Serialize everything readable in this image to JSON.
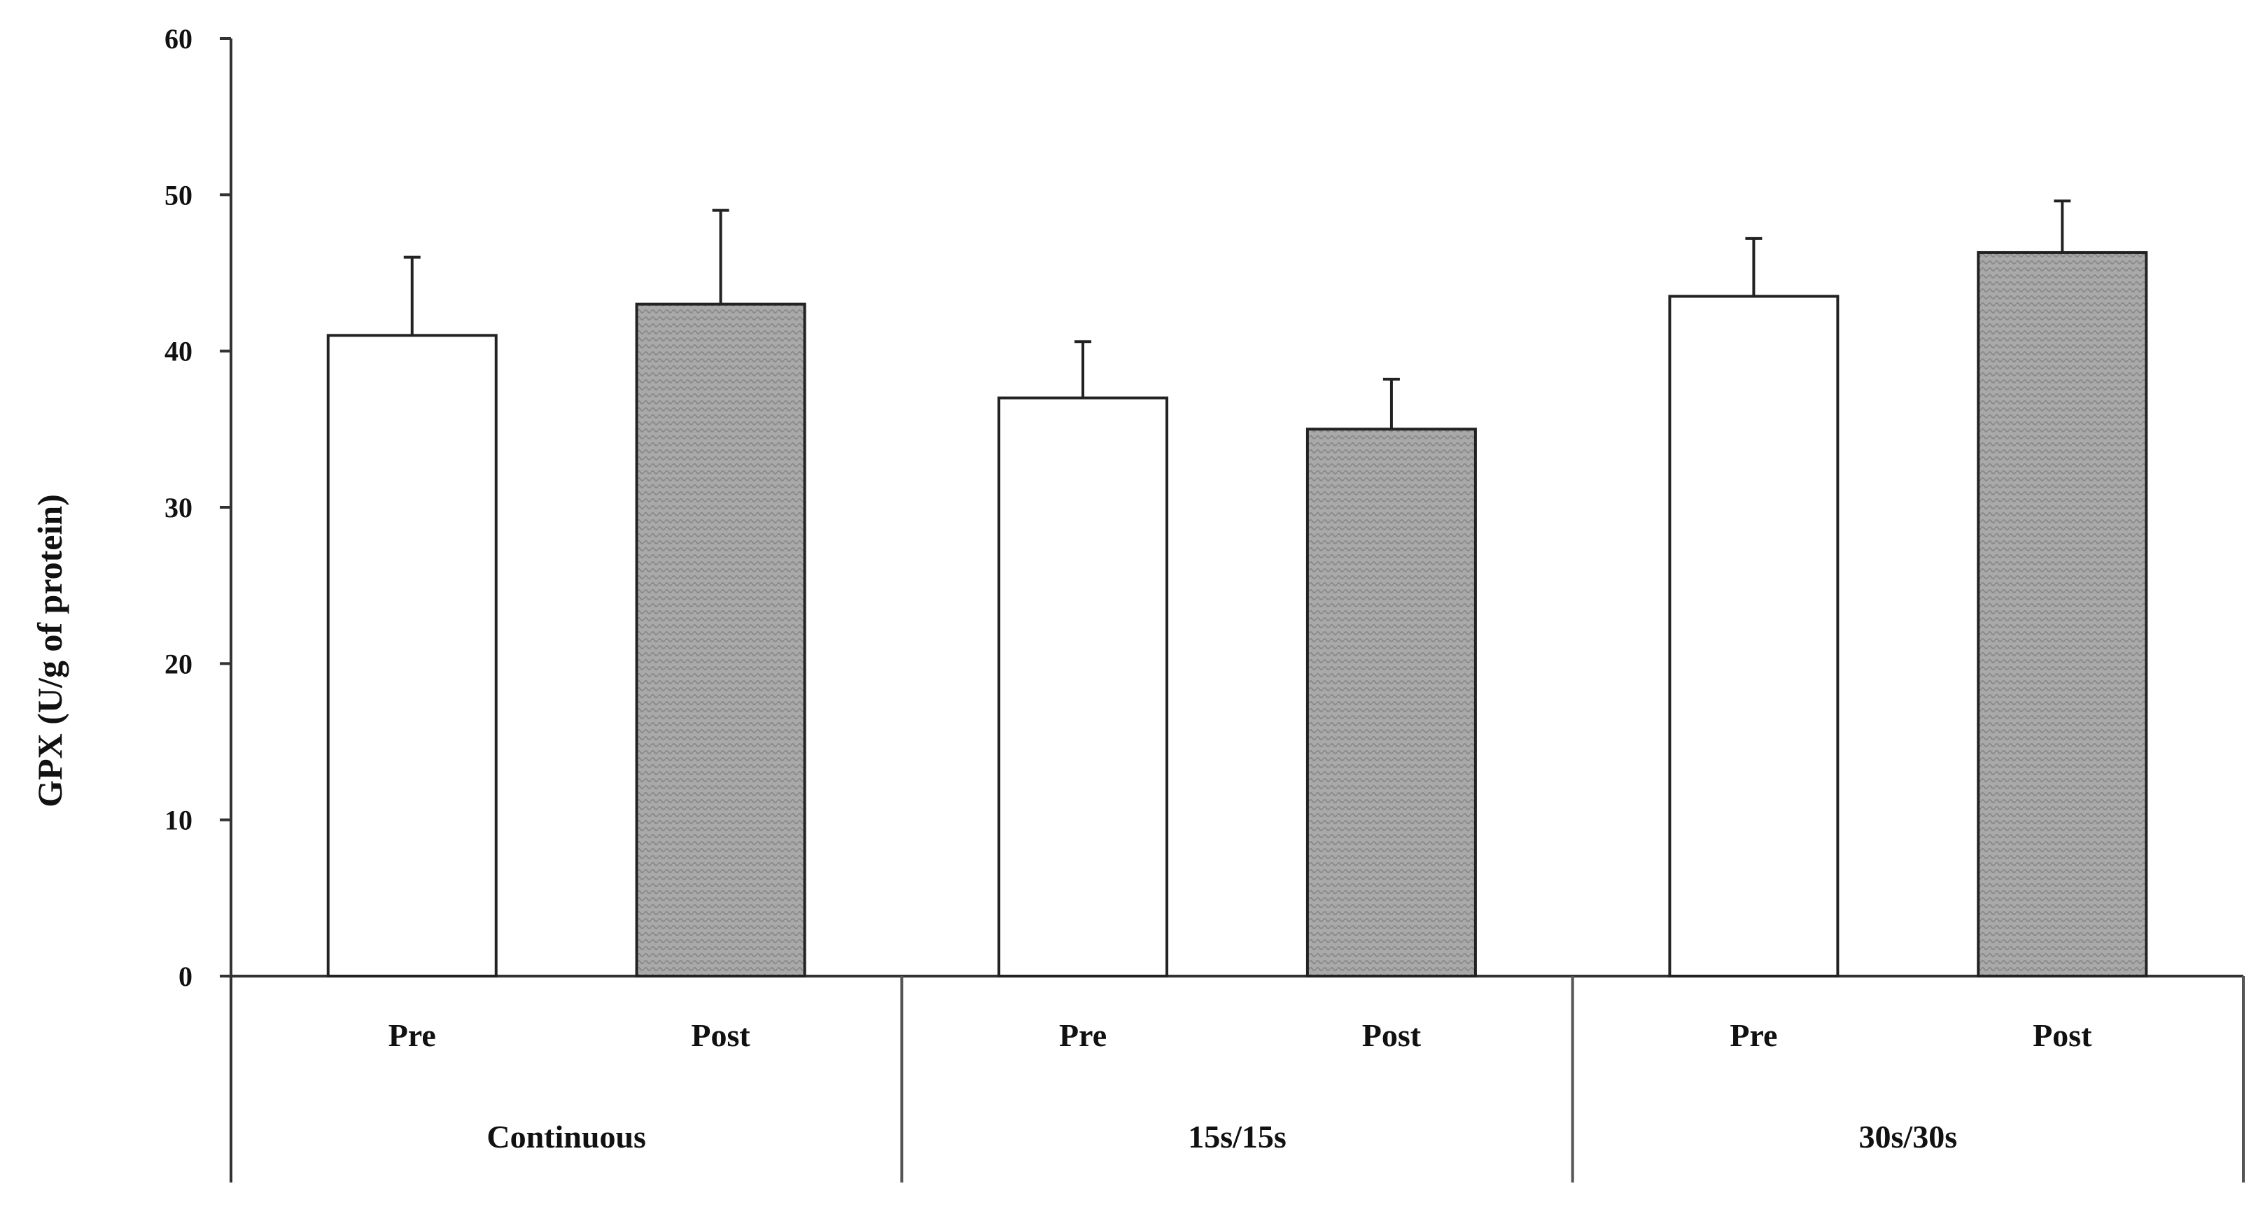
{
  "chart_data": {
    "type": "bar",
    "title": "",
    "ylabel": "GPX (U/g of protein)",
    "xlabel": "",
    "ylim": [
      0,
      60
    ],
    "yticks": [
      "0",
      "10",
      "20",
      "30",
      "40",
      "50",
      "60"
    ],
    "grid": false,
    "groups": [
      {
        "name": "Continuous",
        "bars": [
          {
            "label": "Pre",
            "value": 41,
            "error": 5,
            "fill": "#ffffff"
          },
          {
            "label": "Post",
            "value": 43,
            "error": 6,
            "fill": "#b8b8b8"
          }
        ]
      },
      {
        "name": "15s/15s",
        "bars": [
          {
            "label": "Pre",
            "value": 37,
            "error": 3.6,
            "fill": "#ffffff"
          },
          {
            "label": "Post",
            "value": 35,
            "error": 3.2,
            "fill": "#b8b8b8"
          }
        ]
      },
      {
        "name": "30s/30s",
        "bars": [
          {
            "label": "Pre",
            "value": 43.5,
            "error": 3.7,
            "fill": "#ffffff"
          },
          {
            "label": "Post",
            "value": 46.3,
            "error": 3.3,
            "fill": "#b8b8b8"
          }
        ]
      }
    ]
  }
}
